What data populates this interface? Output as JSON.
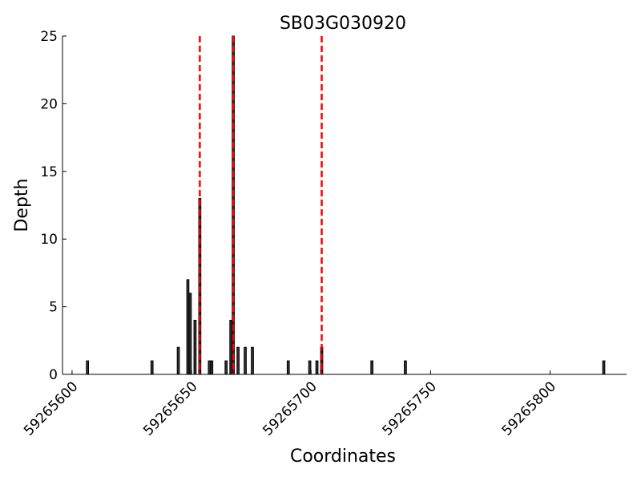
{
  "chart_data": {
    "type": "bar",
    "title": "SB03G030920",
    "x_label": "Coordinates",
    "y_label": "Depth",
    "x": [
      59265606,
      59265633,
      59265644,
      59265648,
      59265649,
      59265651,
      59265653,
      59265657,
      59265658,
      59265664,
      59265666,
      59265667,
      59265669,
      59265672,
      59265675,
      59265690,
      59265699,
      59265702,
      59265704,
      59265725,
      59265739,
      59265822
    ],
    "values": [
      1,
      1,
      2,
      7,
      6,
      4,
      13,
      1,
      1,
      1,
      4,
      25,
      2,
      2,
      2,
      1,
      1,
      1,
      2,
      1,
      1,
      1
    ],
    "color": "#333333",
    "vlines": {
      "x": [
        59265653,
        59265667,
        59265704
      ],
      "color": "#ff0000",
      "style": "dashed"
    },
    "xlim": [
      59265596,
      59265832
    ],
    "xticks": [
      59265600,
      59265650,
      59265700,
      59265750,
      59265800
    ],
    "ylim": [
      0,
      25
    ],
    "yticks": [
      0,
      5,
      10,
      15,
      20,
      25
    ]
  }
}
